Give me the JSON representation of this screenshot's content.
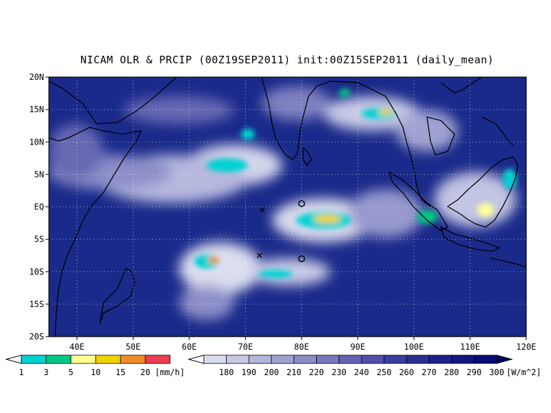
{
  "title": "NICAM OLR & PRCIP (00Z19SEP2011) init:00Z15SEP2011 (daily_mean)",
  "map": {
    "lon_range": [
      35,
      120
    ],
    "lat_range": [
      -20,
      20
    ],
    "lon_ticks": [
      {
        "value": 40,
        "label": "40E"
      },
      {
        "value": 50,
        "label": "50E"
      },
      {
        "value": 60,
        "label": "60E"
      },
      {
        "value": 70,
        "label": "70E"
      },
      {
        "value": 80,
        "label": "80E"
      },
      {
        "value": 90,
        "label": "90E"
      },
      {
        "value": 100,
        "label": "100E"
      },
      {
        "value": 110,
        "label": "110E"
      },
      {
        "value": 120,
        "label": "120E"
      }
    ],
    "lat_ticks": [
      {
        "value": 20,
        "label": "20N"
      },
      {
        "value": 15,
        "label": "15N"
      },
      {
        "value": 10,
        "label": "10N"
      },
      {
        "value": 5,
        "label": "5N"
      },
      {
        "value": 0,
        "label": "EQ"
      },
      {
        "value": -5,
        "label": "5S"
      },
      {
        "value": -10,
        "label": "10S"
      },
      {
        "value": -15,
        "label": "15S"
      },
      {
        "value": -20,
        "label": "20S"
      }
    ],
    "background_color": "#1a2a8a",
    "markers": [
      {
        "type": "x",
        "lon": 73,
        "lat": -0.5
      },
      {
        "type": "x",
        "lon": 72.5,
        "lat": -7.5
      },
      {
        "type": "hexagon",
        "lon": 80,
        "lat": 0.5
      },
      {
        "type": "hexagon",
        "lon": 80,
        "lat": -8
      }
    ]
  },
  "precip_colorbar": {
    "unit": "[mm/h]",
    "labels": [
      "1",
      "3",
      "5",
      "10",
      "15",
      "20"
    ],
    "colors": [
      "#00d2d2",
      "#00c882",
      "#ffff96",
      "#f0d200",
      "#f08c28",
      "#f03c50"
    ]
  },
  "olr_colorbar": {
    "unit": "[W/m^2]",
    "labels": [
      "180",
      "190",
      "200",
      "210",
      "220",
      "230",
      "240",
      "250",
      "260",
      "270",
      "280",
      "290",
      "300"
    ],
    "colors": [
      "#dcdcf0",
      "#c8c8e6",
      "#b4b4dc",
      "#a0a0d2",
      "#8c8cc8",
      "#7878be",
      "#6464b4",
      "#5050aa",
      "#3c3ca0",
      "#2d2d96",
      "#1e1e8c",
      "#141482",
      "#0a0a78",
      "#000064"
    ]
  }
}
